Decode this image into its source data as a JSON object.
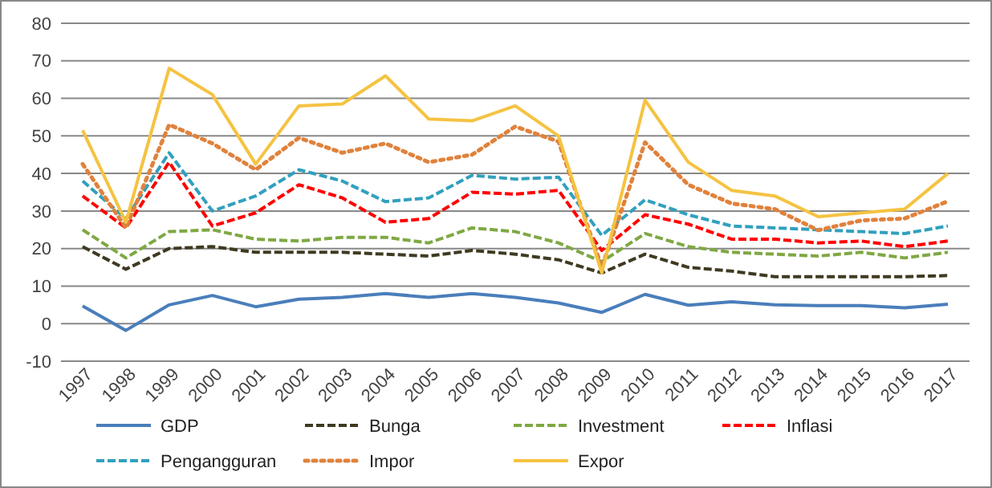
{
  "chart_data": {
    "type": "line",
    "categories": [
      "1997",
      "1998",
      "1999",
      "2000",
      "2001",
      "2002",
      "2003",
      "2004",
      "2005",
      "2006",
      "2007",
      "2008",
      "2009",
      "2010",
      "2011",
      "2012",
      "2013",
      "2014",
      "2015",
      "2016",
      "2017"
    ],
    "ylim": [
      -10,
      80
    ],
    "yticks": [
      -10,
      0,
      10,
      20,
      30,
      40,
      50,
      60,
      70,
      80
    ],
    "grid": "y",
    "legend": "bottom",
    "series": [
      {
        "name": "GDP",
        "color": "#4a7ebb",
        "line_style": "solid",
        "values": [
          4.7,
          -1.8,
          5,
          7.5,
          4.5,
          6.5,
          7,
          8,
          7,
          8,
          7,
          5.5,
          3,
          7.8,
          4.9,
          5.8,
          5,
          4.8,
          4.8,
          4.2,
          5.2
        ]
      },
      {
        "name": "Bunga",
        "color": "#3f3a21",
        "line_style": "dashed",
        "values": [
          20.5,
          14.5,
          20,
          20.5,
          19,
          19,
          19,
          18.5,
          18,
          19.5,
          18.5,
          17,
          13.5,
          18.5,
          15,
          14,
          12.5,
          12.5,
          12.5,
          12.5,
          12.8
        ]
      },
      {
        "name": "Investment",
        "color": "#7fa843",
        "line_style": "dashed",
        "values": [
          25,
          17.5,
          24.5,
          25,
          22.5,
          22,
          23,
          23,
          21.5,
          25.5,
          24.5,
          21.5,
          16.5,
          24,
          20.5,
          19,
          18.5,
          18,
          19,
          17.5,
          19
        ]
      },
      {
        "name": "Inflasi",
        "color": "#ff0000",
        "line_style": "dashed",
        "values": [
          34,
          25.5,
          43,
          26,
          29.5,
          37,
          33.5,
          27,
          28,
          35,
          34.5,
          35.5,
          19.5,
          29,
          26.5,
          22.5,
          22.5,
          21.5,
          22,
          20.5,
          22
        ]
      },
      {
        "name": "Pengangguran",
        "color": "#31a0be",
        "line_style": "dashed",
        "values": [
          38,
          28,
          45.5,
          30,
          34,
          41,
          38,
          32.5,
          33.5,
          39.5,
          38.5,
          39,
          23.5,
          33,
          29,
          26,
          25.5,
          25,
          24.5,
          24,
          26
        ]
      },
      {
        "name": "Impor",
        "color": "#e0823c",
        "line_style": "dotted",
        "values": [
          42.5,
          25.5,
          53,
          48,
          41,
          49.5,
          45.5,
          48,
          43,
          45,
          52.5,
          48.5,
          15,
          48.3,
          37,
          32,
          30.5,
          24.9,
          27.5,
          28,
          32.6
        ]
      },
      {
        "name": "Expor",
        "color": "#f5c342",
        "line_style": "solid",
        "values": [
          51.5,
          27,
          68,
          61,
          42.5,
          58,
          58.5,
          66,
          54.5,
          54,
          58,
          50,
          13.5,
          59.5,
          43,
          35.5,
          34,
          28.5,
          29.5,
          30.5,
          40
        ]
      }
    ]
  }
}
